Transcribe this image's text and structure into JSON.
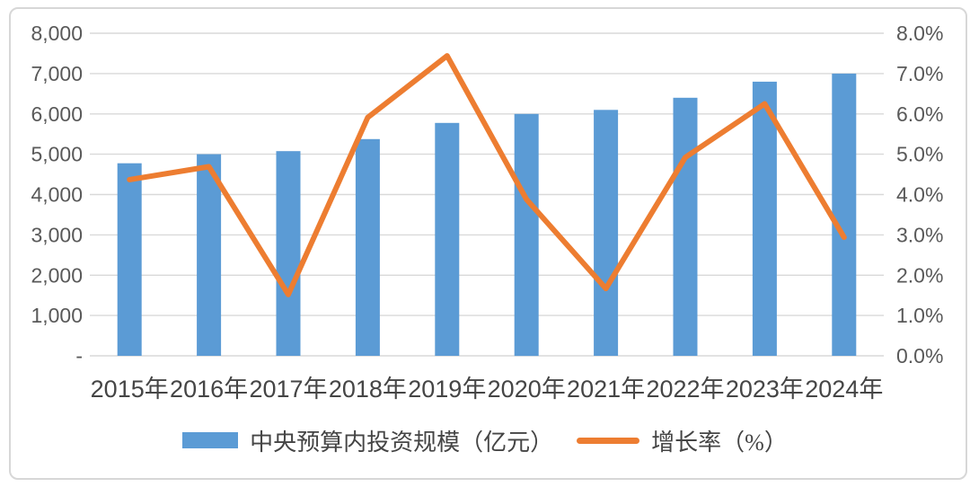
{
  "legend": {
    "bar_label": "中央预算内投资规模（亿元）",
    "line_label": "增长率（%）"
  },
  "colors": {
    "bar": "#5B9BD5",
    "line": "#ED7D31",
    "gridline": "#D9D9D9",
    "tick_text": "#595959",
    "label_text": "#454545",
    "border": "#D7D7D7",
    "background": "#FFFFFF"
  },
  "chart_data": {
    "type": "bar+line",
    "title": "",
    "categories": [
      "2015年",
      "2016年",
      "2017年",
      "2018年",
      "2019年",
      "2020年",
      "2021年",
      "2022年",
      "2023年",
      "2024年"
    ],
    "series": [
      {
        "name": "中央预算内投资规模（亿元）",
        "type": "bar",
        "axis": "left",
        "color": "#5B9BD5",
        "values": [
          4776,
          5000,
          5076,
          5376,
          5776,
          6000,
          6100,
          6400,
          6800,
          7000
        ]
      },
      {
        "name": "增长率（%）",
        "type": "line",
        "axis": "right",
        "color": "#ED7D31",
        "values": [
          4.37,
          4.69,
          1.52,
          5.91,
          7.44,
          3.88,
          1.67,
          4.92,
          6.25,
          2.94
        ]
      }
    ],
    "left_axis": {
      "min": 0,
      "max": 8000,
      "tick_step": 1000,
      "ticks": [
        "8,000",
        "7,000",
        "6,000",
        "5,000",
        "4,000",
        "3,000",
        "2,000",
        "1,000",
        "-"
      ]
    },
    "right_axis": {
      "min": 0,
      "max": 8,
      "tick_step": 1,
      "ticks": [
        "8.0%",
        "7.0%",
        "6.0%",
        "5.0%",
        "4.0%",
        "3.0%",
        "2.0%",
        "1.0%",
        "0.0%"
      ]
    },
    "grid": true,
    "legend_position": "bottom"
  }
}
